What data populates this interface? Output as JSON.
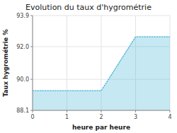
{
  "chart_data": {
    "type": "area",
    "title": "Evolution du taux d'hygrométrie",
    "xlabel": "heure par heure",
    "ylabel": "Taux hygrométrie %",
    "x": [
      0,
      2,
      3,
      4
    ],
    "values": [
      89.3,
      89.3,
      92.6,
      92.6
    ],
    "color": "#5bbcdc",
    "line_style": "dotted",
    "xlim": [
      0,
      4
    ],
    "ylim": [
      88.1,
      93.9
    ],
    "xticks": [
      0,
      1,
      2,
      3,
      4
    ],
    "yticks": [
      88.1,
      {
        "value": 90.0,
        "label": "90.0"
      },
      {
        "value": 92.0,
        "label": "92.0"
      },
      93.9
    ],
    "grid": true
  }
}
